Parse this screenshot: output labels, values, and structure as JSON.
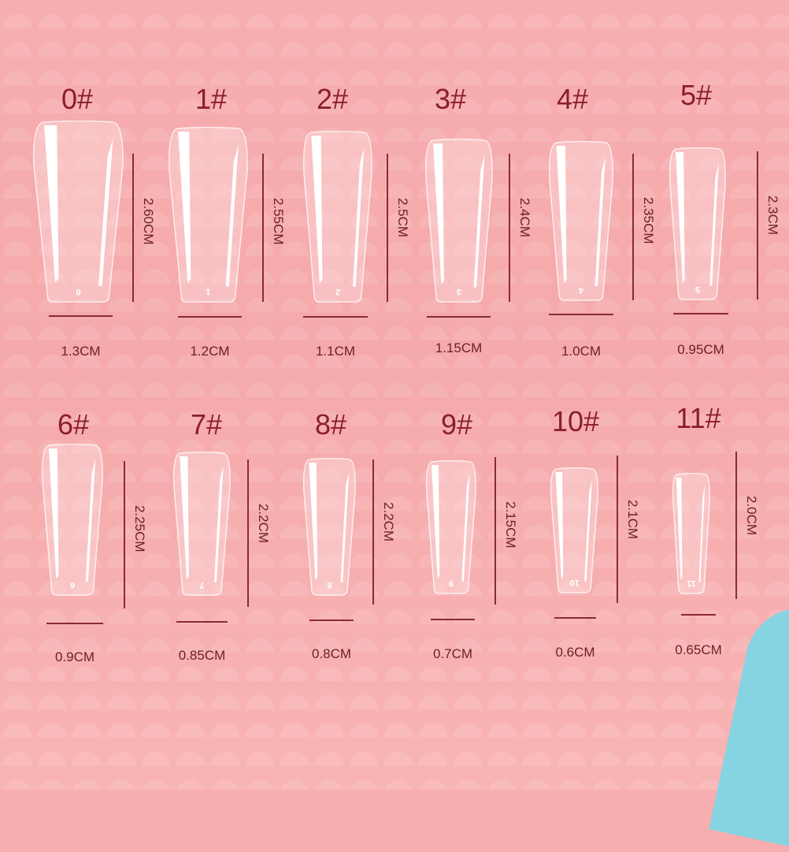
{
  "unit_note_color": "#8b1e2a",
  "accent_blob_color": "#86d3e2",
  "sizes": [
    {
      "label": "0#",
      "tip_number": "0",
      "length": "2.60CM",
      "width": "1.3CM"
    },
    {
      "label": "1#",
      "tip_number": "1",
      "length": "2.55CM",
      "width": "1.2CM"
    },
    {
      "label": "2#",
      "tip_number": "2",
      "length": "2.5CM",
      "width": "1.1CM"
    },
    {
      "label": "3#",
      "tip_number": "3",
      "length": "2.4CM",
      "width": "1.15CM"
    },
    {
      "label": "4#",
      "tip_number": "4",
      "length": "2.35CM",
      "width": "1.0CM"
    },
    {
      "label": "5#",
      "tip_number": "5",
      "length": "2.3CM",
      "width": "0.95CM"
    },
    {
      "label": "6#",
      "tip_number": "6",
      "length": "2.25CM",
      "width": "0.9CM"
    },
    {
      "label": "7#",
      "tip_number": "7",
      "length": "2.2CM",
      "width": "0.85CM"
    },
    {
      "label": "8#",
      "tip_number": "8",
      "length": "2.2CM",
      "width": "0.8CM"
    },
    {
      "label": "9#",
      "tip_number": "9",
      "length": "2.15CM",
      "width": "0.7CM"
    },
    {
      "label": "10#",
      "tip_number": "10",
      "length": "2.1CM",
      "width": "0.6CM"
    },
    {
      "label": "11#",
      "tip_number": "11",
      "length": "2.0CM",
      "width": "0.65CM"
    }
  ]
}
